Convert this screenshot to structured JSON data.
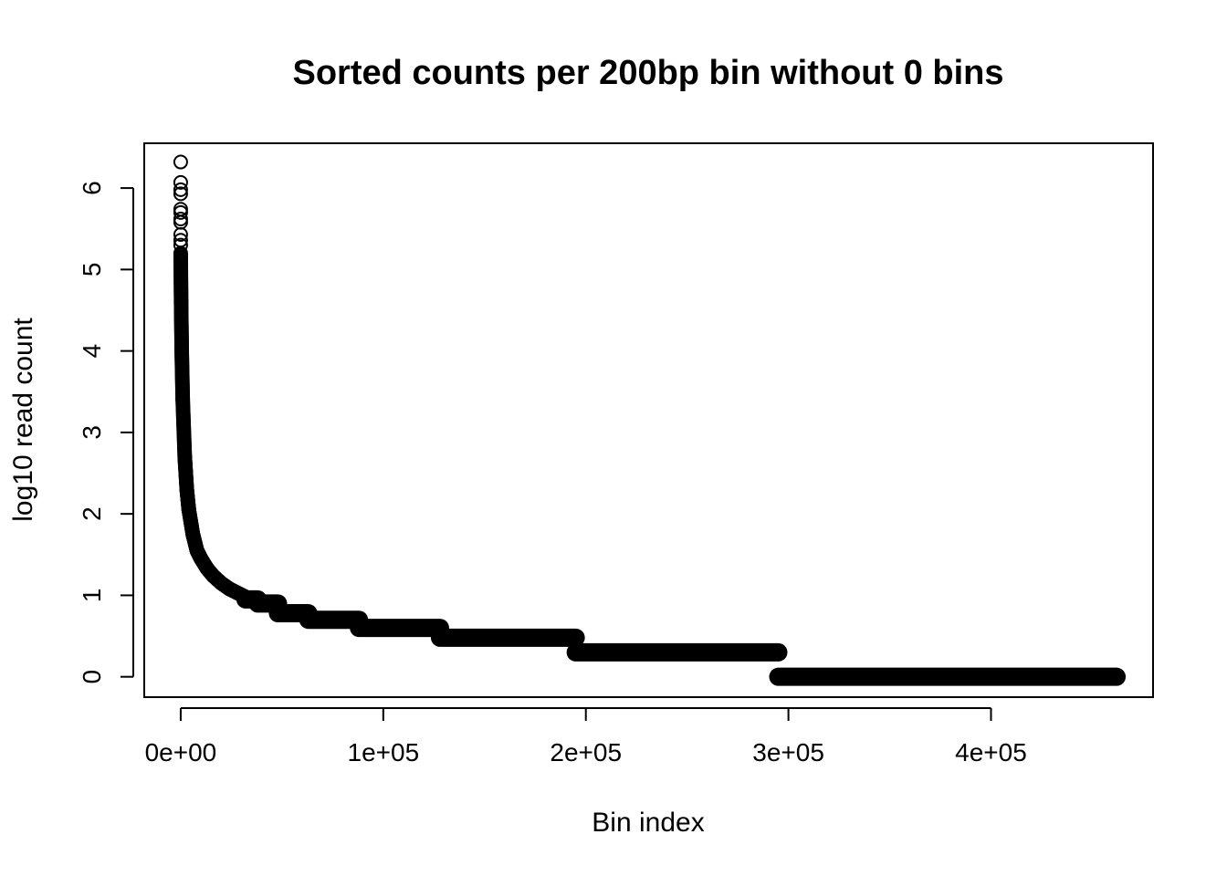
{
  "chart_data": {
    "type": "scatter",
    "title": "Sorted counts per 200bp bin without 0 bins",
    "xlabel": "Bin index",
    "ylabel": "log10 read count",
    "xlim": [
      -18000,
      480000
    ],
    "ylim": [
      -0.25,
      6.55
    ],
    "xticks": [
      0,
      100000,
      200000,
      300000,
      400000
    ],
    "xtick_labels": [
      "0e+00",
      "1e+05",
      "2e+05",
      "3e+05",
      "4e+05"
    ],
    "yticks": [
      0,
      1,
      2,
      3,
      4,
      5,
      6
    ],
    "ytick_labels": [
      "0",
      "1",
      "2",
      "3",
      "4",
      "5",
      "6"
    ],
    "grid": false,
    "legend": "none",
    "marker": "open-circle",
    "color": "#000000",
    "n_points": 462000,
    "outliers": [
      {
        "x": 0,
        "y": 6.32
      },
      {
        "x": 0,
        "y": 6.07
      },
      {
        "x": 0,
        "y": 5.98
      },
      {
        "x": 0,
        "y": 5.93
      },
      {
        "x": 0,
        "y": 5.74
      },
      {
        "x": 0,
        "y": 5.7
      },
      {
        "x": 0,
        "y": 5.62
      },
      {
        "x": 0,
        "y": 5.58
      },
      {
        "x": 0,
        "y": 5.43
      },
      {
        "x": 0,
        "y": 5.36
      },
      {
        "x": 0,
        "y": 5.3
      }
    ],
    "curve": [
      {
        "x": 0,
        "y": 5.2
      },
      {
        "x": 200,
        "y": 4.6
      },
      {
        "x": 500,
        "y": 4.0
      },
      {
        "x": 1000,
        "y": 3.4
      },
      {
        "x": 2000,
        "y": 2.7
      },
      {
        "x": 3000,
        "y": 2.3
      },
      {
        "x": 4000,
        "y": 2.05
      },
      {
        "x": 6000,
        "y": 1.75
      },
      {
        "x": 8000,
        "y": 1.55
      },
      {
        "x": 10000,
        "y": 1.45
      },
      {
        "x": 13000,
        "y": 1.33
      },
      {
        "x": 16000,
        "y": 1.24
      },
      {
        "x": 20000,
        "y": 1.15
      },
      {
        "x": 24000,
        "y": 1.08
      },
      {
        "x": 28000,
        "y": 1.03
      },
      {
        "x": 32000,
        "y": 0.98
      }
    ],
    "steps": [
      {
        "x_start": 32000,
        "x_end": 38000,
        "y": 0.95
      },
      {
        "x_start": 38000,
        "y": 0.9,
        "x_end": 48000
      },
      {
        "x_start": 48000,
        "x_end": 63000,
        "y": 0.78
      },
      {
        "x_start": 63000,
        "x_end": 88000,
        "y": 0.7
      },
      {
        "x_start": 88000,
        "x_end": 128000,
        "y": 0.6
      },
      {
        "x_start": 128000,
        "x_end": 195000,
        "y": 0.48
      },
      {
        "x_start": 195000,
        "x_end": 295000,
        "y": 0.3
      },
      {
        "x_start": 295000,
        "x_end": 462000,
        "y": 0.0
      }
    ]
  }
}
